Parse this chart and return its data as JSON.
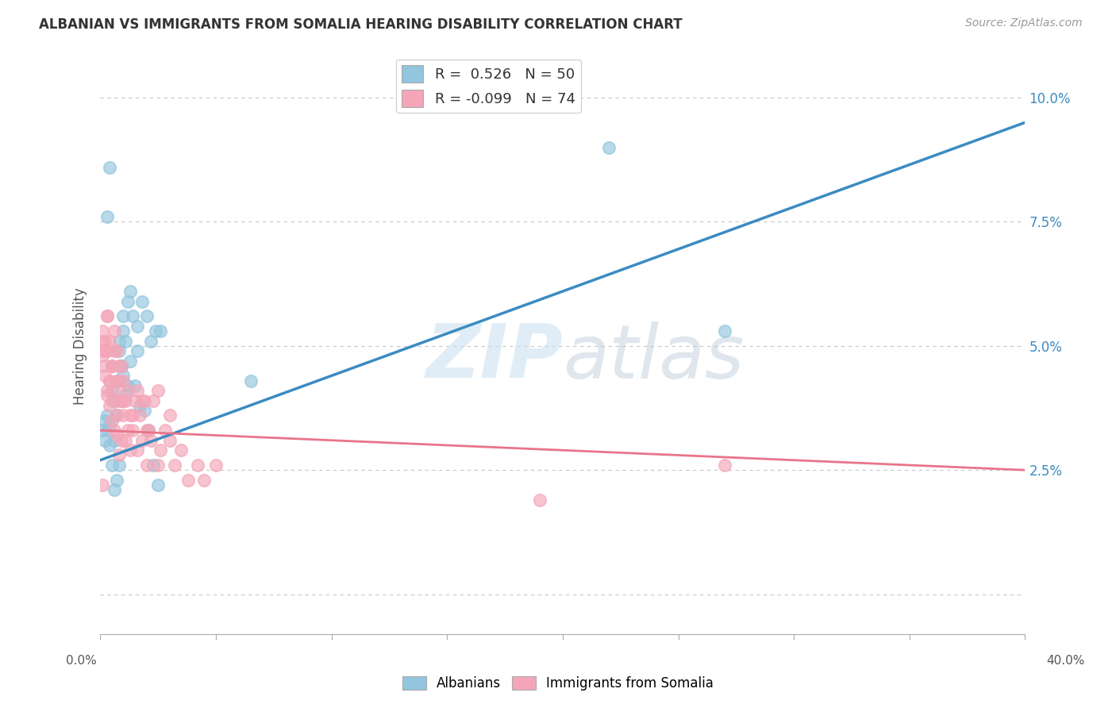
{
  "title": "ALBANIAN VS IMMIGRANTS FROM SOMALIA HEARING DISABILITY CORRELATION CHART",
  "source": "Source: ZipAtlas.com",
  "ylabel": "Hearing Disability",
  "ytick_vals": [
    0.0,
    0.025,
    0.05,
    0.075,
    0.1
  ],
  "ytick_labels": [
    "",
    "2.5%",
    "5.0%",
    "7.5%",
    "10.0%"
  ],
  "xlim": [
    0.0,
    0.4
  ],
  "ylim": [
    -0.008,
    0.108
  ],
  "watermark": "ZIPatlas",
  "blue_color": "#92c5de",
  "pink_color": "#f4a6b8",
  "blue_line_color": "#3b8bc2",
  "pink_line_color": "#e8758a",
  "background_color": "#ffffff",
  "grid_color": "#c8c8c8",
  "blue_trendline_x": [
    0.0,
    0.4
  ],
  "blue_trendline_y": [
    0.027,
    0.095
  ],
  "pink_trendline_x": [
    0.0,
    0.4
  ],
  "pink_trendline_y": [
    0.033,
    0.025
  ],
  "albanian_x": [
    0.001,
    0.002,
    0.002,
    0.003,
    0.003,
    0.004,
    0.004,
    0.005,
    0.005,
    0.006,
    0.006,
    0.007,
    0.007,
    0.008,
    0.008,
    0.009,
    0.009,
    0.01,
    0.01,
    0.011,
    0.012,
    0.013,
    0.014,
    0.016,
    0.016,
    0.018,
    0.02,
    0.022,
    0.024,
    0.026,
    0.003,
    0.004,
    0.005,
    0.006,
    0.007,
    0.008,
    0.009,
    0.01,
    0.011,
    0.012,
    0.013,
    0.015,
    0.017,
    0.019,
    0.021,
    0.023,
    0.025,
    0.065,
    0.22,
    0.27
  ],
  "albanian_y": [
    0.033,
    0.031,
    0.035,
    0.033,
    0.036,
    0.034,
    0.03,
    0.046,
    0.041,
    0.039,
    0.031,
    0.043,
    0.036,
    0.051,
    0.049,
    0.046,
    0.039,
    0.056,
    0.053,
    0.051,
    0.059,
    0.061,
    0.056,
    0.049,
    0.054,
    0.059,
    0.056,
    0.051,
    0.053,
    0.053,
    0.076,
    0.086,
    0.026,
    0.021,
    0.023,
    0.026,
    0.046,
    0.044,
    0.04,
    0.042,
    0.047,
    0.042,
    0.038,
    0.037,
    0.033,
    0.026,
    0.022,
    0.043,
    0.09,
    0.053
  ],
  "somalia_x": [
    0.001,
    0.001,
    0.002,
    0.002,
    0.003,
    0.003,
    0.003,
    0.004,
    0.004,
    0.005,
    0.005,
    0.006,
    0.006,
    0.007,
    0.007,
    0.008,
    0.008,
    0.009,
    0.009,
    0.01,
    0.01,
    0.011,
    0.011,
    0.012,
    0.013,
    0.013,
    0.014,
    0.015,
    0.016,
    0.017,
    0.018,
    0.019,
    0.02,
    0.021,
    0.022,
    0.023,
    0.025,
    0.026,
    0.028,
    0.03,
    0.032,
    0.035,
    0.038,
    0.042,
    0.045,
    0.05,
    0.001,
    0.002,
    0.003,
    0.004,
    0.005,
    0.006,
    0.007,
    0.008,
    0.009,
    0.01,
    0.012,
    0.014,
    0.016,
    0.018,
    0.02,
    0.025,
    0.03,
    0.001,
    0.002,
    0.003,
    0.004,
    0.005,
    0.006,
    0.007,
    0.008,
    0.19,
    0.27,
    0.001
  ],
  "somalia_y": [
    0.049,
    0.053,
    0.046,
    0.051,
    0.041,
    0.049,
    0.056,
    0.043,
    0.051,
    0.039,
    0.046,
    0.041,
    0.049,
    0.036,
    0.043,
    0.039,
    0.046,
    0.031,
    0.039,
    0.036,
    0.043,
    0.031,
    0.039,
    0.033,
    0.036,
    0.029,
    0.033,
    0.039,
    0.029,
    0.036,
    0.031,
    0.039,
    0.026,
    0.033,
    0.031,
    0.039,
    0.026,
    0.029,
    0.033,
    0.031,
    0.026,
    0.029,
    0.023,
    0.026,
    0.023,
    0.026,
    0.051,
    0.049,
    0.056,
    0.043,
    0.046,
    0.053,
    0.049,
    0.043,
    0.046,
    0.039,
    0.041,
    0.036,
    0.041,
    0.039,
    0.033,
    0.041,
    0.036,
    0.048,
    0.044,
    0.04,
    0.038,
    0.035,
    0.033,
    0.032,
    0.028,
    0.019,
    0.026,
    0.022
  ]
}
